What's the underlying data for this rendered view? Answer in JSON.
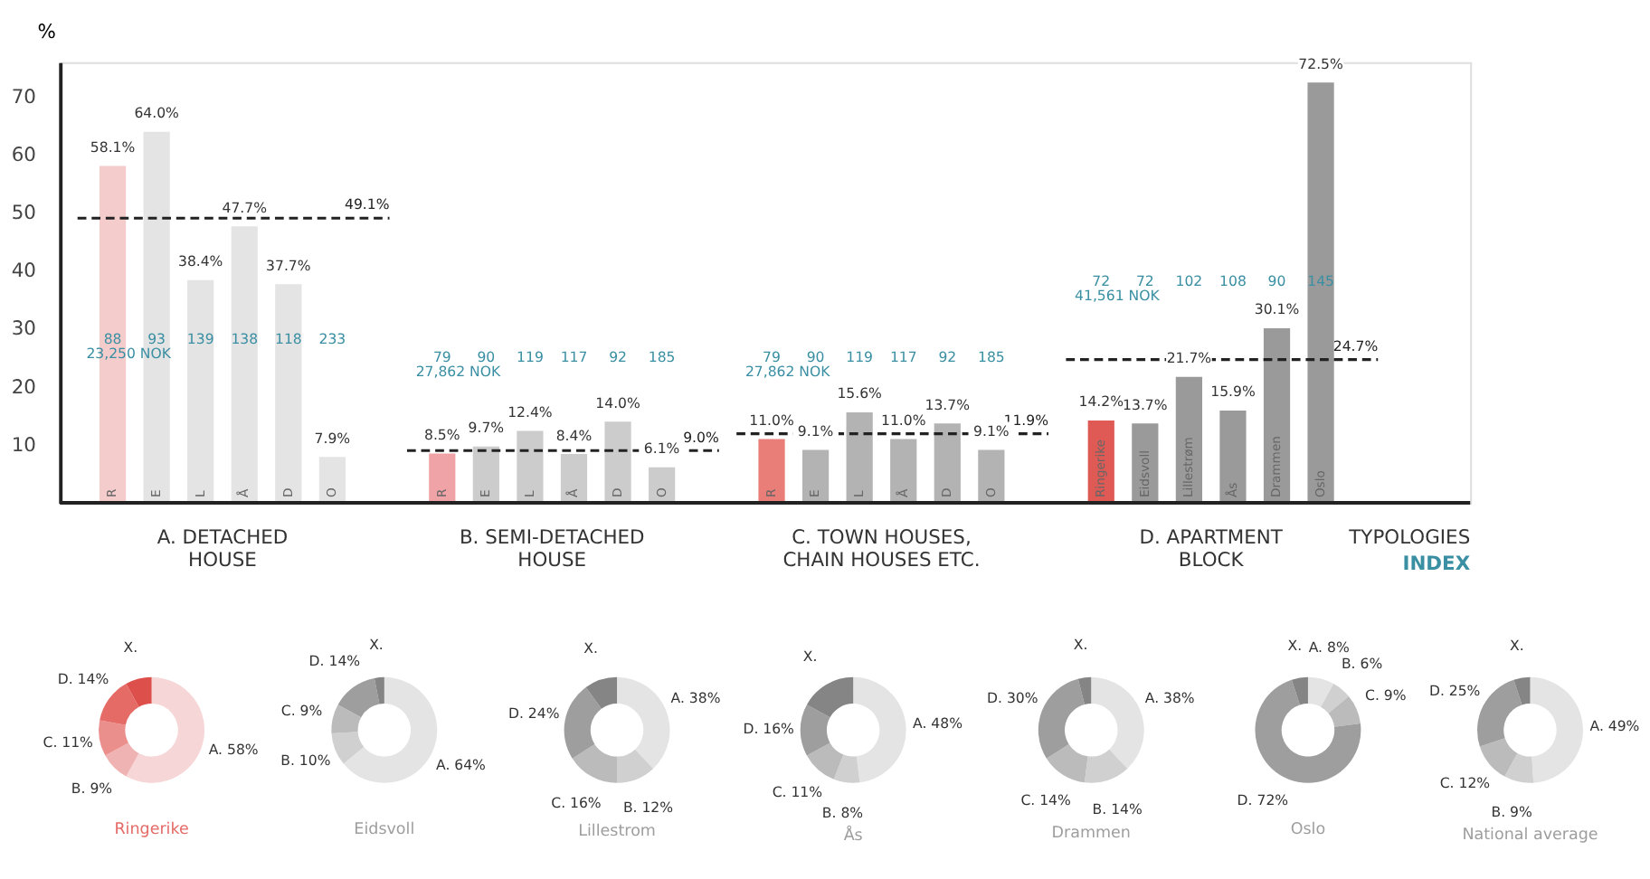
{
  "chart_data": [
    {
      "type": "bar",
      "ylabel": "%",
      "xlabel": "TYPOLOGIES",
      "categories": [
        "R",
        "E",
        "L",
        "Å",
        "D",
        "O",
        "R",
        "E",
        "L",
        "Å",
        "D",
        "O",
        "R",
        "E",
        "L",
        "Å",
        "D",
        "O",
        "Ringerike",
        "Eidsvoll",
        "Lillestrøm",
        "Ås",
        "Drammen",
        "Oslo"
      ],
      "values": [
        58.1,
        64.0,
        38.4,
        47.7,
        37.7,
        7.9,
        8.5,
        9.7,
        12.4,
        8.4,
        14.0,
        6.1,
        11.0,
        9.1,
        15.6,
        11.0,
        13.7,
        9.1,
        14.2,
        13.7,
        21.7,
        15.9,
        30.1,
        72.5
      ],
      "colors": [
        "#f5cccc",
        "#e4e4e4",
        "#e4e4e4",
        "#e4e4e4",
        "#e4e4e4",
        "#e4e4e4",
        "#f0a3a6",
        "#cccccc",
        "#cccccc",
        "#cccccc",
        "#cccccc",
        "#cccccc",
        "#e97d78",
        "#b3b3b3",
        "#b3b3b3",
        "#b3b3b3",
        "#b3b3b3",
        "#b3b3b3",
        "#e05a55",
        "#9a9a9a",
        "#9a9a9a",
        "#9a9a9a",
        "#9a9a9a",
        "#9a9a9a"
      ],
      "value_labels": [
        "58.1%",
        "64.0%",
        "38.4%",
        "47.7%",
        "37.7%",
        "7.9%",
        "8.5%",
        "9.7%",
        "12.4%",
        "8.4%",
        "14.0%",
        "6.1%",
        "11.0%",
        "9.1%",
        "15.6%",
        "11.0%",
        "13.7%",
        "9.1%",
        "14.2%",
        "13.7%",
        "21.7%",
        "15.9%",
        "30.1%",
        "72.5%"
      ],
      "ylim": [
        0,
        76
      ],
      "yticks": [
        10,
        20,
        30,
        40,
        50,
        60,
        70
      ],
      "ref_lines": [
        {
          "axis": "y",
          "value": 49.1,
          "label": "49.1%",
          "line_style": "dashed",
          "color": "#222222"
        },
        {
          "axis": "y",
          "value": 9.0,
          "label": "9.0%",
          "line_style": "dashed",
          "color": "#222222"
        },
        {
          "axis": "y",
          "value": 11.9,
          "label": "11.9%",
          "line_style": "dashed",
          "color": "#222222"
        },
        {
          "axis": "y",
          "value": 24.7,
          "label": "24.7%",
          "line_style": "dashed",
          "color": "#222222"
        }
      ],
      "annotations": [
        "A. DETACHED\nHOUSE",
        "B. SEMI-DETACHED\nHOUSE",
        "C. TOWN HOUSES,\nCHAIN HOUSES ETC.",
        "D. APARTMENT\nBLOCK",
        "INDEX",
        "23,250 NOK",
        "27,862 NOK",
        "27,862 NOK",
        "41,561 NOK",
        "88",
        "93",
        "139",
        "138",
        "118",
        "233",
        "79",
        "90",
        "119",
        "117",
        "92",
        "185",
        "79",
        "90",
        "119",
        "117",
        "92",
        "185",
        "72",
        "72",
        "102",
        "108",
        "90",
        "145"
      ]
    },
    {
      "type": "donut",
      "title": "Ringerike",
      "categories": [
        "A.",
        "B.",
        "C.",
        "D.",
        "X."
      ],
      "values": [
        58,
        9,
        11,
        14,
        8
      ],
      "value_labels": [
        "58%",
        "9%",
        "11%",
        "14%",
        null
      ],
      "colors": [
        "#f6d6d6",
        "#f0b3b3",
        "#eb8f8c",
        "#e56b67",
        "#dd4f4a"
      ]
    },
    {
      "type": "donut",
      "title": "Eidsvoll",
      "categories": [
        "A.",
        "B.",
        "C.",
        "D.",
        "X."
      ],
      "values": [
        64,
        10,
        9,
        14,
        3
      ],
      "value_labels": [
        "64%",
        "10%",
        "9%",
        "14%",
        null
      ],
      "colors": [
        "#e4e4e4",
        "#d0d0d0",
        "#bbbbbb",
        "#9e9e9e",
        "#858585"
      ]
    },
    {
      "type": "donut",
      "title": "Lillestrom",
      "categories": [
        "A.",
        "B.",
        "C.",
        "D.",
        "X."
      ],
      "values": [
        38,
        12,
        16,
        24,
        10
      ],
      "value_labels": [
        "38%",
        "12%",
        "16%",
        "24%",
        null
      ],
      "colors": [
        "#e4e4e4",
        "#d0d0d0",
        "#bbbbbb",
        "#9e9e9e",
        "#858585"
      ]
    },
    {
      "type": "donut",
      "title": "Ås",
      "categories": [
        "A.",
        "B.",
        "C.",
        "D.",
        "X."
      ],
      "values": [
        48,
        8,
        11,
        16,
        17
      ],
      "value_labels": [
        "48%",
        "8%",
        "11%",
        "16%",
        null
      ],
      "colors": [
        "#e4e4e4",
        "#d0d0d0",
        "#bbbbbb",
        "#9e9e9e",
        "#858585"
      ]
    },
    {
      "type": "donut",
      "title": "Drammen",
      "categories": [
        "A.",
        "B.",
        "C.",
        "D.",
        "X."
      ],
      "values": [
        38,
        14,
        14,
        30,
        4
      ],
      "value_labels": [
        "38%",
        "14%",
        "14%",
        "30%",
        null
      ],
      "colors": [
        "#e4e4e4",
        "#d0d0d0",
        "#bbbbbb",
        "#9e9e9e",
        "#858585"
      ]
    },
    {
      "type": "donut",
      "title": "Oslo",
      "categories": [
        "A.",
        "B.",
        "C.",
        "D.",
        "X."
      ],
      "values": [
        8,
        6,
        9,
        72,
        5
      ],
      "value_labels": [
        "8%",
        "6%",
        "9%",
        "72%",
        null
      ],
      "colors": [
        "#e4e4e4",
        "#d0d0d0",
        "#bbbbbb",
        "#9e9e9e",
        "#858585"
      ]
    },
    {
      "type": "donut",
      "title": "National average",
      "categories": [
        "A.",
        "B.",
        "C.",
        "D.",
        "X."
      ],
      "values": [
        49,
        9,
        12,
        25,
        5
      ],
      "value_labels": [
        "49%",
        "9%",
        "12%",
        "25%",
        null
      ],
      "colors": [
        "#e4e4e4",
        "#d0d0d0",
        "#bbbbbb",
        "#9e9e9e",
        "#858585"
      ]
    }
  ]
}
